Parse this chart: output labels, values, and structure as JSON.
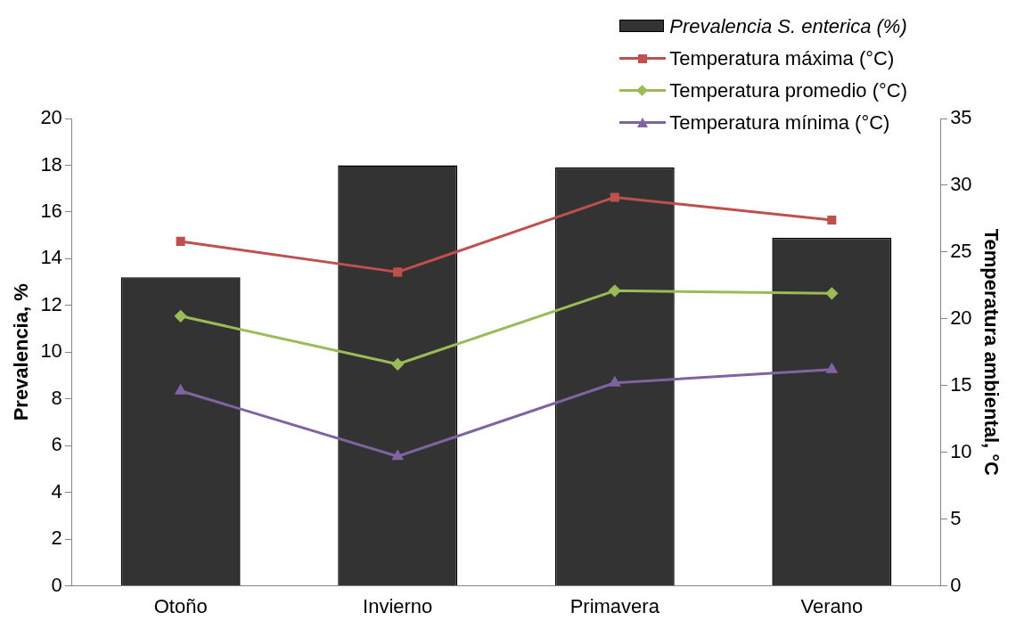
{
  "chart_data": {
    "type": "bar",
    "categories": [
      "Otoño",
      "Invierno",
      "Primavera",
      "Verano"
    ],
    "ylabel": "Prevalencia, %",
    "y2label": "Temperatura ambiental, °C",
    "ylim": [
      0,
      20
    ],
    "yticks": [
      0,
      2,
      4,
      6,
      8,
      10,
      12,
      14,
      16,
      18,
      20
    ],
    "y2lim": [
      0,
      35
    ],
    "y2ticks": [
      0,
      5,
      10,
      15,
      20,
      25,
      30,
      35
    ],
    "legend": "top right",
    "series": [
      {
        "name": "Prevalencia S. enterica (%)",
        "color": "#333333",
        "values": [
          13.2,
          18.0,
          17.9,
          14.9
        ]
      },
      {
        "name": "Temperatura máxima (°C)",
        "type": "line",
        "axis": "y2",
        "marker": "square",
        "color": "#c0504d",
        "values": [
          25.8,
          23.5,
          29.1,
          27.4
        ]
      },
      {
        "name": "Temperatura promedio (°C)",
        "type": "line",
        "axis": "y2",
        "marker": "diamond",
        "color": "#9bbb59",
        "values": [
          20.2,
          16.6,
          22.1,
          21.9
        ]
      },
      {
        "name": "Temperatura mínima (°C)",
        "type": "line",
        "axis": "y2",
        "marker": "triangle",
        "color": "#8064a2",
        "values": [
          14.6,
          9.7,
          15.2,
          16.2
        ]
      }
    ]
  }
}
